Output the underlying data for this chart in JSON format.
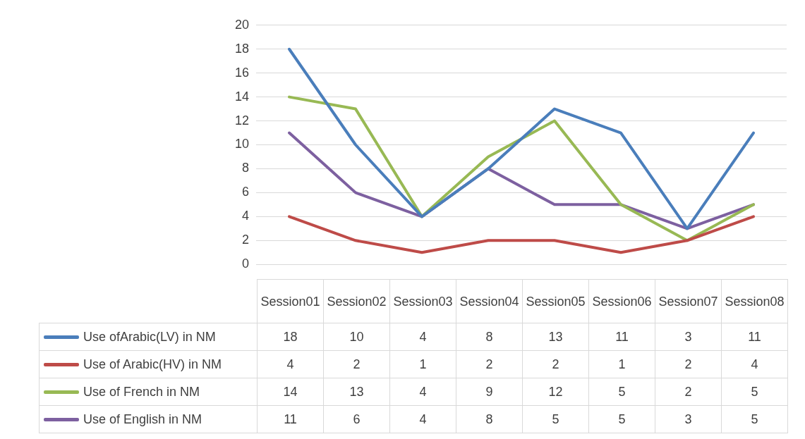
{
  "chart_data": {
    "type": "line",
    "categories": [
      "Session01",
      "Session02",
      "Session03",
      "Session04",
      "Session05",
      "Session06",
      "Session07",
      "Session08"
    ],
    "series": [
      {
        "name": "Use ofArabic(LV) in NM",
        "color": "#4a7ebb",
        "values": [
          18,
          10,
          4,
          8,
          13,
          11,
          3,
          11
        ]
      },
      {
        "name": "Use of Arabic(HV) in NM",
        "color": "#be4b48",
        "values": [
          4,
          2,
          1,
          2,
          2,
          1,
          2,
          4
        ]
      },
      {
        "name": "Use of French in NM",
        "color": "#98b954",
        "values": [
          14,
          13,
          4,
          9,
          12,
          5,
          2,
          5
        ]
      },
      {
        "name": "Use of English in NM",
        "color": "#7d60a0",
        "values": [
          11,
          6,
          4,
          8,
          5,
          5,
          3,
          5
        ]
      }
    ],
    "ylim": [
      0,
      20
    ],
    "yticks": [
      0,
      2,
      4,
      6,
      8,
      10,
      12,
      14,
      16,
      18,
      20
    ],
    "grid": "y",
    "legend": "bottom",
    "data_labels": true,
    "marker": "none"
  }
}
